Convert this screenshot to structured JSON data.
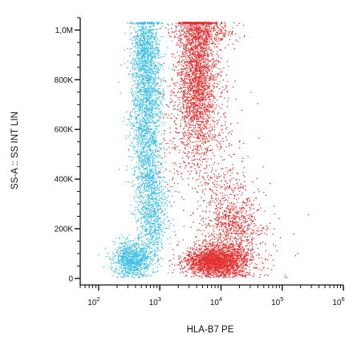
{
  "chart_data": {
    "type": "scatter",
    "title": "",
    "xlabel": "HLA-B7 PE",
    "ylabel": "SS-A :: SS INT LIN",
    "x_scale": "log",
    "y_scale": "linear",
    "xlim": [
      50,
      1000000
    ],
    "ylim": [
      -20000,
      1050000
    ],
    "grid": false,
    "x_ticks": [
      {
        "value": 100,
        "base": "10",
        "exp": "2"
      },
      {
        "value": 1000,
        "base": "10",
        "exp": "3"
      },
      {
        "value": 10000,
        "base": "10",
        "exp": "4"
      },
      {
        "value": 100000,
        "base": "10",
        "exp": "5"
      },
      {
        "value": 1000000,
        "base": "10",
        "exp": "6"
      }
    ],
    "y_ticks": [
      {
        "value": 0,
        "label": "0"
      },
      {
        "value": 200000,
        "label": "200K"
      },
      {
        "value": 400000,
        "label": "400K"
      },
      {
        "value": 600000,
        "label": "600K"
      },
      {
        "value": 800000,
        "label": "800K"
      },
      {
        "value": 1000000,
        "label": "1,0M"
      }
    ],
    "series": [
      {
        "color": "#3bbfe8",
        "clusters": [
          {
            "x_center": 600,
            "x_spread_log10": 0.13,
            "y_center": 720000,
            "y_spread": 170000,
            "count": 1700
          },
          {
            "x_center": 550,
            "x_spread_log10": 0.1,
            "y_center": 930000,
            "y_spread": 70000,
            "count": 500
          },
          {
            "x_center": 750,
            "x_spread_log10": 0.13,
            "y_center": 260000,
            "y_spread": 90000,
            "count": 700
          },
          {
            "x_center": 350,
            "x_spread_log10": 0.16,
            "y_center": 80000,
            "y_spread": 35000,
            "count": 950
          },
          {
            "x_center": 650,
            "x_spread_log10": 0.11,
            "y_center": 420000,
            "y_spread": 70000,
            "count": 350
          }
        ]
      },
      {
        "color": "#e53030",
        "clusters": [
          {
            "x_center": 4000,
            "x_spread_log10": 0.16,
            "y_center": 830000,
            "y_spread": 150000,
            "count": 2300
          },
          {
            "x_center": 4500,
            "x_spread_log10": 0.32,
            "y_center": 560000,
            "y_spread": 140000,
            "count": 500
          },
          {
            "x_center": 8000,
            "x_spread_log10": 0.25,
            "y_center": 70000,
            "y_spread": 30000,
            "count": 2200
          },
          {
            "x_center": 15000,
            "x_spread_log10": 0.22,
            "y_center": 230000,
            "y_spread": 90000,
            "count": 750
          },
          {
            "x_center": 15000,
            "x_spread_log10": 0.38,
            "y_center": 140000,
            "y_spread": 80000,
            "count": 300
          },
          {
            "x_center": 5000,
            "x_spread_log10": 0.25,
            "y_center": 990000,
            "y_spread": 25000,
            "count": 350
          }
        ]
      }
    ]
  }
}
